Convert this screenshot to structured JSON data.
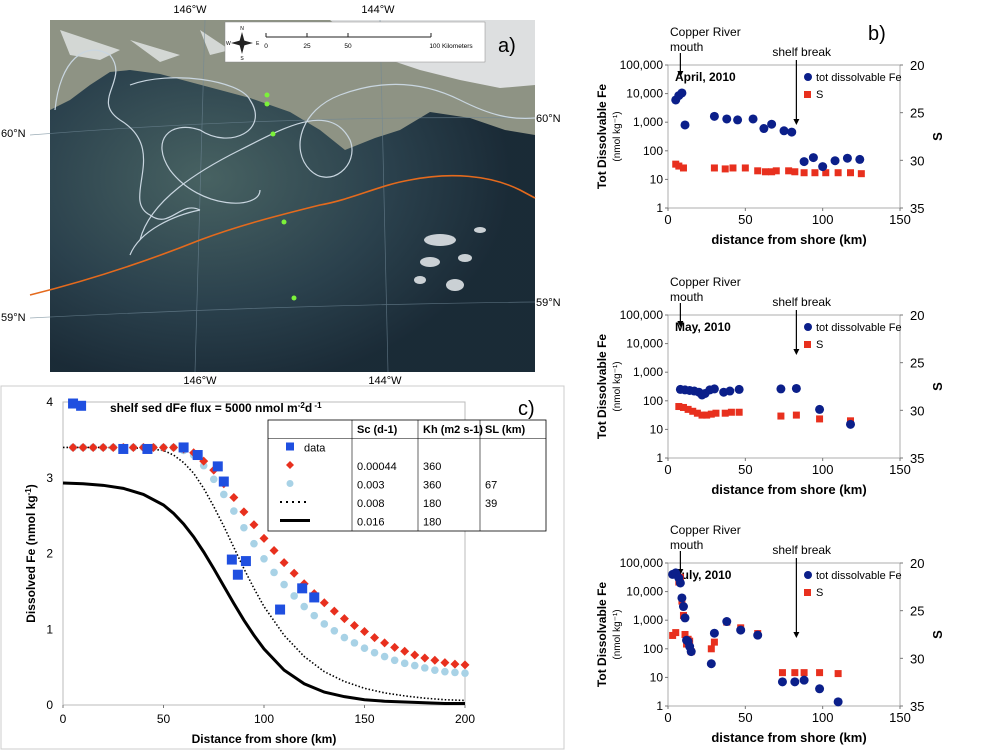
{
  "map": {
    "panel_label": "a)",
    "lon_labels_top": [
      "146°W",
      "144°W"
    ],
    "lon_labels_bottom": [
      "146°W",
      "144°W"
    ],
    "lat_labels_left": [
      "60°N",
      "59°N"
    ],
    "lat_labels_right": [
      "60°N",
      "59°N"
    ],
    "scale_ticks": [
      "0",
      "25",
      "50",
      "100 Kilometers"
    ],
    "compass": {
      "n": "N",
      "s": "S",
      "e": "E",
      "w": "W"
    },
    "colors": {
      "ocean": "#1d2f3a",
      "land": "#9a9f8f",
      "contour": "#c9d6e0",
      "shelf_line": "#e46a1d",
      "station": "#7cf23a"
    }
  },
  "chart_data": [
    {
      "type": "scatter",
      "panel": "b",
      "title": "April, 2010",
      "panel_label": "b)",
      "xlabel": "distance from shore (km)",
      "ylabel": "Tot Dissolvable Fe",
      "ylabel_unit": "(nmol kg⁻¹)",
      "y2label": "S",
      "xlim": [
        0,
        150
      ],
      "ylim": [
        1,
        100000
      ],
      "yscale": "log",
      "y2lim": [
        20,
        35
      ],
      "y2_reversed": true,
      "x_ticks": [
        "0",
        "50",
        "100",
        "150"
      ],
      "y_ticks": [
        "1",
        "10",
        "100",
        "1,000",
        "10,000",
        "100,000"
      ],
      "y2_ticks": [
        "20",
        "25",
        "30",
        "35"
      ],
      "annotations": {
        "mouth": "Copper River mouth",
        "mouth_line1": "Copper River",
        "mouth_line2": "mouth",
        "shelf": "shelf break",
        "mouth_x": 8,
        "shelf_x": 83
      },
      "legend": {
        "fe": "tot dissolvable Fe",
        "s": "S"
      },
      "series": [
        {
          "name": "tot dissolvable Fe",
          "color": "#0b1f8a",
          "marker": "circle",
          "x": [
            5,
            7,
            9,
            11,
            30,
            38,
            45,
            55,
            62,
            67,
            75,
            80,
            88,
            94,
            100,
            108,
            116,
            124
          ],
          "y": [
            6000,
            8500,
            10500,
            800,
            1600,
            1300,
            1200,
            1300,
            600,
            850,
            500,
            450,
            42,
            58,
            28,
            45,
            55,
            50
          ]
        },
        {
          "name": "S",
          "color": "#e8301e",
          "marker": "square",
          "x": [
            5,
            7,
            10,
            30,
            37,
            42,
            50,
            58,
            63,
            67,
            70,
            78,
            82,
            88,
            95,
            102,
            110,
            118,
            125
          ],
          "y": [
            30.4,
            30.6,
            30.8,
            30.8,
            30.9,
            30.8,
            30.8,
            31.1,
            31.2,
            31.2,
            31.1,
            31.1,
            31.2,
            31.3,
            31.3,
            31.3,
            31.3,
            31.3,
            31.4
          ]
        }
      ]
    },
    {
      "type": "scatter",
      "panel": "b",
      "title": "May, 2010",
      "xlabel": "distance from shore (km)",
      "ylabel": "Tot Dissolvable Fe",
      "ylabel_unit": "(nmol kg⁻¹)",
      "y2label": "S",
      "xlim": [
        0,
        150
      ],
      "ylim": [
        1,
        100000
      ],
      "yscale": "log",
      "y2lim": [
        20,
        35
      ],
      "y2_reversed": true,
      "x_ticks": [
        "0",
        "50",
        "100",
        "150"
      ],
      "y_ticks": [
        "1",
        "10",
        "100",
        "1,000",
        "10,000",
        "100,000"
      ],
      "y2_ticks": [
        "20",
        "25",
        "30",
        "35"
      ],
      "annotations": {
        "mouth": "Copper River mouth",
        "mouth_line1": "Copper River",
        "mouth_line2": "mouth",
        "shelf": "shelf break",
        "mouth_x": 8,
        "shelf_x": 83
      },
      "legend": {
        "fe": "tot dissolvable Fe",
        "s": "S"
      },
      "series": [
        {
          "name": "tot dissolvable Fe",
          "color": "#0b1f8a",
          "marker": "circle",
          "x": [
            8,
            11,
            14,
            17,
            20,
            22,
            24,
            27,
            30,
            36,
            40,
            46,
            73,
            83,
            98,
            118
          ],
          "y": [
            250,
            240,
            230,
            220,
            200,
            160,
            180,
            240,
            260,
            200,
            220,
            250,
            260,
            270,
            50,
            15
          ]
        },
        {
          "name": "S",
          "color": "#e8301e",
          "marker": "square",
          "x": [
            7,
            10,
            13,
            16,
            19,
            22,
            25,
            28,
            31,
            37,
            41,
            46,
            73,
            83,
            98,
            118
          ],
          "y": [
            29.6,
            29.7,
            29.9,
            30.1,
            30.3,
            30.5,
            30.5,
            30.4,
            30.3,
            30.3,
            30.2,
            30.2,
            30.6,
            30.5,
            30.9,
            31.1
          ]
        }
      ]
    },
    {
      "type": "scatter",
      "panel": "b",
      "title": "July, 2010",
      "xlabel": "distance from shore (km)",
      "ylabel": "Tot Dissolvable Fe",
      "ylabel_unit": "(nmol kg⁻¹)",
      "y2label": "S",
      "xlim": [
        0,
        150
      ],
      "ylim": [
        1,
        100000
      ],
      "yscale": "log",
      "y2lim": [
        20,
        35
      ],
      "y2_reversed": true,
      "x_ticks": [
        "0",
        "50",
        "100",
        "150"
      ],
      "y_ticks": [
        "1",
        "10",
        "100",
        "1,000",
        "10,000",
        "100,000"
      ],
      "y2_ticks": [
        "20",
        "25",
        "30",
        "35"
      ],
      "annotations": {
        "mouth": "Copper River mouth",
        "mouth_line1": "Copper River",
        "mouth_line2": "mouth",
        "shelf": "shelf break",
        "mouth_x": 8,
        "shelf_x": 83
      },
      "legend": {
        "fe": "tot dissolvable Fe",
        "s": "S"
      },
      "series": [
        {
          "name": "tot dissolvable Fe",
          "color": "#0b1f8a",
          "marker": "circle",
          "x": [
            3,
            5,
            7,
            8,
            9,
            10,
            11,
            12,
            13,
            14,
            15,
            28,
            30,
            38,
            47,
            58,
            74,
            82,
            88,
            98,
            110
          ],
          "y": [
            40000,
            45000,
            30000,
            20000,
            6000,
            3000,
            1200,
            200,
            180,
            120,
            80,
            30,
            350,
            900,
            450,
            300,
            7,
            7,
            8,
            4,
            1.4
          ]
        },
        {
          "name": "S",
          "color": "#e8301e",
          "marker": "square",
          "x": [
            3,
            5,
            7,
            8,
            9,
            10,
            11,
            12,
            13,
            14,
            15,
            28,
            30,
            38,
            47,
            58,
            74,
            82,
            88,
            98,
            110
          ],
          "y": [
            27.6,
            27.3,
            22.0,
            21.5,
            24.0,
            25.5,
            27.5,
            28.5,
            28.0,
            28.2,
            29.3,
            29.0,
            28.3,
            26.2,
            26.8,
            27.4,
            31.5,
            31.5,
            31.5,
            31.5,
            31.6
          ]
        }
      ]
    },
    {
      "type": "line",
      "panel": "c",
      "title": "shelf sed dFe flux = 5000 nmol m",
      "title_sup1": "-2",
      "title_mid": "d",
      "title_sup2": " -1",
      "panel_label": "c)",
      "xlabel": "Distance from shore (km)",
      "ylabel": "Dissolved Fe (nmol kg",
      "ylabel_sup": "-1",
      "ylabel_end": ")",
      "xlim": [
        0,
        200
      ],
      "ylim": [
        0,
        4
      ],
      "x_ticks": [
        "0",
        "50",
        "100",
        "150",
        "200"
      ],
      "y_ticks": [
        "0",
        "1",
        "2",
        "3",
        "4"
      ],
      "table": {
        "headers": [
          "",
          "Sc (d-1)",
          "Kh (m2 s-1)",
          "SL (km)"
        ],
        "rows": [
          {
            "label": "data",
            "sc": "",
            "kh": "",
            "sl": ""
          },
          {
            "label": "",
            "sc": "0.00044",
            "kh": "360",
            "sl": ""
          },
          {
            "label": "",
            "sc": "0.003",
            "kh": "360",
            "sl": "67"
          },
          {
            "label": "",
            "sc": "0.008",
            "kh": "180",
            "sl": "39"
          },
          {
            "label": "",
            "sc": "0.016",
            "kh": "180",
            "sl": ""
          }
        ]
      },
      "series": [
        {
          "name": "data",
          "color": "#1f4fe0",
          "marker": "square",
          "x": [
            5,
            9,
            30,
            42,
            60,
            67,
            77,
            80,
            84,
            87,
            91,
            108,
            119,
            125
          ],
          "y": [
            3.98,
            3.95,
            3.38,
            3.38,
            3.4,
            3.3,
            3.15,
            2.95,
            1.92,
            1.72,
            1.9,
            1.26,
            1.54,
            1.42
          ]
        },
        {
          "name": "Sc 0.00044",
          "color": "#e8301e",
          "marker": "diamond",
          "x": [
            5,
            10,
            15,
            20,
            25,
            30,
            35,
            40,
            45,
            50,
            55,
            60,
            65,
            70,
            75,
            80,
            85,
            90,
            95,
            100,
            105,
            110,
            115,
            120,
            125,
            130,
            135,
            140,
            145,
            150,
            155,
            160,
            165,
            170,
            175,
            180,
            185,
            190,
            195,
            200
          ],
          "y": [
            3.4,
            3.4,
            3.4,
            3.4,
            3.4,
            3.4,
            3.4,
            3.4,
            3.4,
            3.4,
            3.4,
            3.38,
            3.33,
            3.22,
            3.1,
            2.92,
            2.74,
            2.55,
            2.38,
            2.2,
            2.04,
            1.88,
            1.74,
            1.6,
            1.47,
            1.35,
            1.24,
            1.14,
            1.05,
            0.97,
            0.89,
            0.82,
            0.76,
            0.71,
            0.66,
            0.62,
            0.59,
            0.56,
            0.54,
            0.53
          ]
        },
        {
          "name": "Sc 0.003",
          "color": "#a8d2e6",
          "marker": "circle",
          "x": [
            5,
            10,
            15,
            20,
            25,
            30,
            35,
            40,
            45,
            50,
            55,
            60,
            65,
            70,
            75,
            80,
            85,
            90,
            95,
            100,
            105,
            110,
            115,
            120,
            125,
            130,
            135,
            140,
            145,
            150,
            155,
            160,
            165,
            170,
            175,
            180,
            185,
            190,
            195,
            200
          ],
          "y": [
            3.4,
            3.4,
            3.4,
            3.4,
            3.4,
            3.4,
            3.4,
            3.4,
            3.4,
            3.4,
            3.4,
            3.36,
            3.3,
            3.16,
            2.98,
            2.78,
            2.56,
            2.34,
            2.13,
            1.93,
            1.75,
            1.59,
            1.44,
            1.3,
            1.18,
            1.07,
            0.98,
            0.89,
            0.82,
            0.75,
            0.69,
            0.64,
            0.59,
            0.55,
            0.52,
            0.49,
            0.46,
            0.44,
            0.43,
            0.42
          ]
        },
        {
          "name": "Sc 0.008",
          "color": "#000000",
          "marker": "dotted-line",
          "x": [
            0,
            20,
            40,
            50,
            55,
            60,
            65,
            70,
            75,
            80,
            85,
            90,
            95,
            100,
            110,
            120,
            130,
            140,
            150,
            160,
            170,
            180,
            190,
            200
          ],
          "y": [
            3.4,
            3.4,
            3.39,
            3.36,
            3.3,
            3.2,
            3.06,
            2.86,
            2.62,
            2.36,
            2.08,
            1.8,
            1.54,
            1.3,
            0.92,
            0.64,
            0.44,
            0.31,
            0.22,
            0.16,
            0.12,
            0.09,
            0.07,
            0.06
          ]
        },
        {
          "name": "Sc 0.016",
          "color": "#000000",
          "marker": "solid-line",
          "x": [
            0,
            10,
            20,
            30,
            40,
            50,
            55,
            60,
            65,
            70,
            75,
            80,
            85,
            90,
            95,
            100,
            110,
            120,
            130,
            140,
            150,
            160,
            170,
            180,
            190,
            200
          ],
          "y": [
            2.93,
            2.92,
            2.9,
            2.86,
            2.78,
            2.64,
            2.53,
            2.39,
            2.22,
            2.02,
            1.8,
            1.57,
            1.34,
            1.12,
            0.92,
            0.74,
            0.46,
            0.28,
            0.17,
            0.11,
            0.07,
            0.05,
            0.04,
            0.03,
            0.02,
            0.02
          ]
        }
      ]
    }
  ]
}
